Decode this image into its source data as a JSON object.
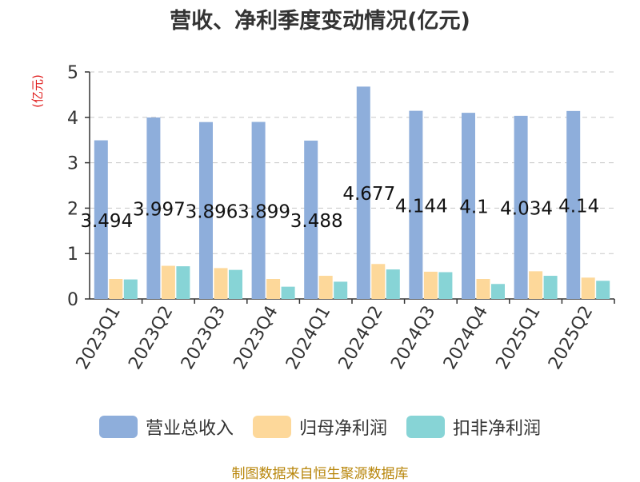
{
  "chart_data": {
    "type": "bar",
    "title": "营收、净利季度变动情况(亿元)",
    "ylabel": "(亿元)",
    "xlabel": "",
    "ylim": [
      0,
      5
    ],
    "yticks": [
      0,
      1,
      2,
      3,
      4,
      5
    ],
    "grid": true,
    "legend_position": "bottom",
    "categories": [
      "2023Q1",
      "2023Q2",
      "2023Q3",
      "2023Q4",
      "2024Q1",
      "2024Q2",
      "2024Q3",
      "2024Q4",
      "2025Q1",
      "2025Q2"
    ],
    "series": [
      {
        "name": "营业总收入",
        "color": "#8eaedb",
        "values": [
          3.494,
          3.997,
          3.896,
          3.899,
          3.488,
          4.677,
          4.144,
          4.1,
          4.034,
          4.14
        ],
        "labels": [
          "3.494",
          "3.997",
          "3.896",
          "3.899",
          "3.488",
          "4.677",
          "4.144",
          "4.1",
          "4.034",
          "4.14"
        ]
      },
      {
        "name": "归母净利润",
        "color": "#fdd89a",
        "values": [
          0.44,
          0.73,
          0.68,
          0.44,
          0.51,
          0.77,
          0.6,
          0.44,
          0.61,
          0.47
        ]
      },
      {
        "name": "扣非净利润",
        "color": "#87d4d6",
        "values": [
          0.43,
          0.72,
          0.64,
          0.27,
          0.38,
          0.65,
          0.59,
          0.33,
          0.51,
          0.4
        ]
      }
    ]
  },
  "source": "制图数据来自恒生聚源数据库"
}
